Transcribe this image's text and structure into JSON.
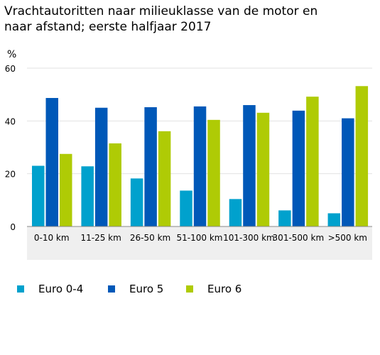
{
  "chart_data": {
    "type": "bar",
    "title_lines": [
      "Vrachtautoritten naar milieuklasse van de motor en",
      "naar afstand; eerste halfjaar 2017"
    ],
    "ylabel": "%",
    "xlabel": "",
    "ylim": [
      0,
      60
    ],
    "yticks": [
      0,
      20,
      40,
      60
    ],
    "grid": true,
    "legend_position": "bottom-left",
    "categories": [
      "0-10 km",
      "11-25 km",
      "26-50 km",
      "51-100 km",
      "101-300 km",
      "301-500 km",
      ">500 km"
    ],
    "series": [
      {
        "name": "Euro 0-4",
        "color": "#00a1cd",
        "values": [
          23.0,
          22.8,
          18.2,
          13.6,
          10.4,
          6.1,
          5.0
        ]
      },
      {
        "name": "Euro 5",
        "color": "#0058b8",
        "values": [
          48.7,
          45.0,
          45.2,
          45.5,
          46.0,
          43.9,
          41.0
        ]
      },
      {
        "name": "Euro 6",
        "color": "#afcb05",
        "values": [
          27.5,
          31.5,
          36.1,
          40.4,
          43.1,
          49.2,
          53.2
        ]
      }
    ]
  }
}
